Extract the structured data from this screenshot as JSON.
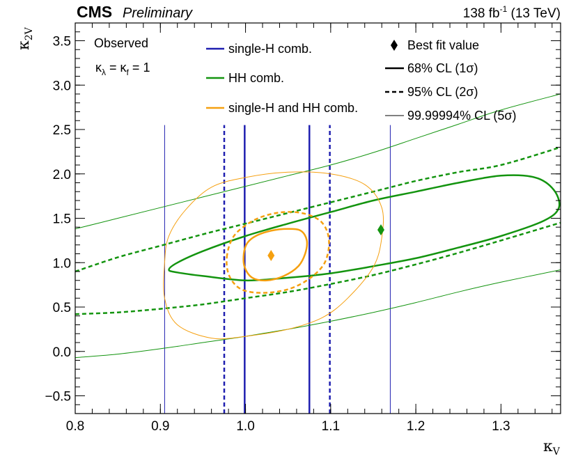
{
  "chart_data": {
    "type": "contour",
    "experiment": "CMS",
    "status": "Preliminary",
    "luminosity": {
      "value": "138 fb",
      "exponent": "-1",
      "energy": "(13 TeV)"
    },
    "xlabel": {
      "symbol": "κ",
      "subscript": "V"
    },
    "ylabel": {
      "symbol": "κ",
      "subscript": "2V"
    },
    "xlim": [
      0.8,
      1.37
    ],
    "ylim": [
      -0.7,
      3.7
    ],
    "x_ticks": [
      {
        "value": 0.8,
        "label": "0.8"
      },
      {
        "value": 0.9,
        "label": "0.9"
      },
      {
        "value": 1.0,
        "label": "1.0"
      },
      {
        "value": 1.1,
        "label": "1.1"
      },
      {
        "value": 1.2,
        "label": "1.2"
      },
      {
        "value": 1.3,
        "label": "1.3"
      }
    ],
    "y_ticks": [
      {
        "value": -0.5,
        "label": "−0.5"
      },
      {
        "value": 0.0,
        "label": "0.0"
      },
      {
        "value": 0.5,
        "label": "0.5"
      },
      {
        "value": 1.0,
        "label": "1.0"
      },
      {
        "value": 1.5,
        "label": "1.5"
      },
      {
        "value": 2.0,
        "label": "2.0"
      },
      {
        "value": 2.5,
        "label": "2.5"
      },
      {
        "value": 3.0,
        "label": "3.0"
      },
      {
        "value": 3.5,
        "label": "3.5"
      }
    ],
    "annotations": {
      "observed": "Observed",
      "condition": {
        "k": "κ",
        "lambda_sub": "λ",
        "f_sub": "f",
        "eq": "=",
        "value": "1"
      }
    },
    "legend": {
      "single_h": "single-H comb.",
      "hh": "HH comb.",
      "combined": "single-H and HH comb.",
      "best_fit": "Best fit value",
      "cl68": "68% CL (1σ)",
      "cl95": "95% CL (2σ)",
      "cl5s": "99.99994% CL (5σ)"
    },
    "colors": {
      "single_h": "#1f1fb0",
      "hh": "#13940f",
      "combined": "#f5a010"
    },
    "series": [
      {
        "name": "single-H comb. 68% CL",
        "kind": "vline",
        "color": "#1f1fb0",
        "style": "solid",
        "width": 2.5,
        "x": [
          0.999,
          1.075
        ],
        "y_range": [
          -0.7,
          2.55
        ]
      },
      {
        "name": "single-H comb. 95% CL",
        "kind": "vline",
        "color": "#1f1fb0",
        "style": "dashed",
        "width": 2.5,
        "x": [
          0.975,
          1.099
        ],
        "y_range": [
          -0.7,
          2.55
        ]
      },
      {
        "name": "single-H comb. 5σ CL",
        "kind": "vline",
        "color": "#1f1fb0",
        "style": "solid",
        "width": 1,
        "x": [
          0.905,
          1.17
        ],
        "y_range": [
          -0.7,
          2.55
        ]
      },
      {
        "name": "HH comb. 68% CL",
        "kind": "contour",
        "color": "#13940f",
        "style": "solid",
        "width": 2.5,
        "closed": true,
        "points": [
          [
            0.91,
            0.92
          ],
          [
            0.92,
            0.89
          ],
          [
            0.95,
            0.85
          ],
          [
            1.0,
            0.8
          ],
          [
            1.05,
            0.83
          ],
          [
            1.1,
            0.88
          ],
          [
            1.15,
            0.96
          ],
          [
            1.2,
            1.05
          ],
          [
            1.25,
            1.17
          ],
          [
            1.3,
            1.3
          ],
          [
            1.35,
            1.47
          ],
          [
            1.368,
            1.62
          ],
          [
            1.362,
            1.82
          ],
          [
            1.34,
            1.96
          ],
          [
            1.3,
            1.98
          ],
          [
            1.25,
            1.9
          ],
          [
            1.2,
            1.8
          ],
          [
            1.15,
            1.7
          ],
          [
            1.1,
            1.57
          ],
          [
            1.05,
            1.44
          ],
          [
            1.0,
            1.3
          ],
          [
            0.95,
            1.13
          ],
          [
            0.92,
            1.0
          ]
        ]
      },
      {
        "name": "HH comb. 95% CL (upper)",
        "kind": "curve",
        "color": "#13940f",
        "style": "dashed",
        "width": 2.5,
        "points": [
          [
            0.8,
            0.9
          ],
          [
            0.85,
            1.06
          ],
          [
            0.9,
            1.19
          ],
          [
            0.95,
            1.32
          ],
          [
            1.0,
            1.44
          ],
          [
            1.05,
            1.56
          ],
          [
            1.1,
            1.68
          ],
          [
            1.15,
            1.8
          ],
          [
            1.2,
            1.92
          ],
          [
            1.25,
            2.02
          ],
          [
            1.3,
            2.1
          ],
          [
            1.37,
            2.3
          ]
        ]
      },
      {
        "name": "HH comb. 95% CL (lower)",
        "kind": "curve",
        "color": "#13940f",
        "style": "dashed",
        "width": 2.5,
        "points": [
          [
            0.8,
            0.42
          ],
          [
            0.85,
            0.44
          ],
          [
            0.9,
            0.48
          ],
          [
            0.95,
            0.53
          ],
          [
            1.0,
            0.6
          ],
          [
            1.05,
            0.67
          ],
          [
            1.1,
            0.76
          ],
          [
            1.15,
            0.86
          ],
          [
            1.2,
            0.98
          ],
          [
            1.25,
            1.11
          ],
          [
            1.3,
            1.25
          ],
          [
            1.37,
            1.45
          ]
        ]
      },
      {
        "name": "HH comb. 5σ CL (upper)",
        "kind": "curve",
        "color": "#13940f",
        "style": "solid",
        "width": 1,
        "points": [
          [
            0.8,
            1.38
          ],
          [
            0.85,
            1.5
          ],
          [
            0.9,
            1.62
          ],
          [
            0.95,
            1.74
          ],
          [
            1.0,
            1.86
          ],
          [
            1.05,
            1.98
          ],
          [
            1.1,
            2.1
          ],
          [
            1.15,
            2.24
          ],
          [
            1.2,
            2.4
          ],
          [
            1.25,
            2.56
          ],
          [
            1.3,
            2.72
          ],
          [
            1.37,
            2.9
          ]
        ]
      },
      {
        "name": "HH comb. 5σ CL (lower)",
        "kind": "curve",
        "color": "#13940f",
        "style": "solid",
        "width": 1,
        "points": [
          [
            0.8,
            -0.07
          ],
          [
            0.85,
            -0.03
          ],
          [
            0.9,
            0.03
          ],
          [
            0.95,
            0.1
          ],
          [
            1.0,
            0.17
          ],
          [
            1.05,
            0.25
          ],
          [
            1.1,
            0.34
          ],
          [
            1.15,
            0.44
          ],
          [
            1.2,
            0.55
          ],
          [
            1.25,
            0.67
          ],
          [
            1.3,
            0.78
          ],
          [
            1.37,
            0.92
          ]
        ]
      },
      {
        "name": "single-H and HH comb. 68% CL",
        "kind": "contour",
        "color": "#f5a010",
        "style": "solid",
        "width": 2.5,
        "closed": true,
        "points": [
          [
            0.998,
            1.1
          ],
          [
            1.002,
            1.22
          ],
          [
            1.012,
            1.3
          ],
          [
            1.03,
            1.36
          ],
          [
            1.05,
            1.38
          ],
          [
            1.065,
            1.36
          ],
          [
            1.072,
            1.25
          ],
          [
            1.07,
            1.1
          ],
          [
            1.062,
            0.96
          ],
          [
            1.045,
            0.85
          ],
          [
            1.025,
            0.8
          ],
          [
            1.008,
            0.83
          ],
          [
            0.999,
            0.95
          ]
        ]
      },
      {
        "name": "single-H and HH comb. 95% CL",
        "kind": "contour",
        "color": "#f5a010",
        "style": "dashed",
        "width": 2.5,
        "closed": true,
        "points": [
          [
            0.978,
            1.06
          ],
          [
            0.985,
            1.28
          ],
          [
            1.0,
            1.42
          ],
          [
            1.02,
            1.52
          ],
          [
            1.045,
            1.57
          ],
          [
            1.07,
            1.55
          ],
          [
            1.09,
            1.45
          ],
          [
            1.098,
            1.25
          ],
          [
            1.093,
            1.0
          ],
          [
            1.075,
            0.82
          ],
          [
            1.05,
            0.7
          ],
          [
            1.02,
            0.66
          ],
          [
            0.995,
            0.7
          ],
          [
            0.981,
            0.85
          ]
        ]
      },
      {
        "name": "single-H and HH comb. 5σ CL",
        "kind": "contour",
        "color": "#f5a010",
        "style": "solid",
        "width": 1,
        "closed": true,
        "points": [
          [
            0.905,
            1.0
          ],
          [
            0.91,
            1.3
          ],
          [
            0.93,
            1.6
          ],
          [
            0.96,
            1.85
          ],
          [
            1.0,
            1.96
          ],
          [
            1.05,
            2.02
          ],
          [
            1.1,
            2.0
          ],
          [
            1.14,
            1.88
          ],
          [
            1.16,
            1.62
          ],
          [
            1.16,
            1.28
          ],
          [
            1.15,
            0.95
          ],
          [
            1.12,
            0.6
          ],
          [
            1.09,
            0.38
          ],
          [
            1.05,
            0.25
          ],
          [
            1.0,
            0.17
          ],
          [
            0.96,
            0.15
          ],
          [
            0.92,
            0.3
          ],
          [
            0.905,
            0.6
          ]
        ]
      }
    ],
    "best_fit": [
      {
        "name": "HH comb.",
        "x": 1.159,
        "y": 1.37,
        "color": "#13940f"
      },
      {
        "name": "single-H and HH comb.",
        "x": 1.03,
        "y": 1.08,
        "color": "#f5a010"
      }
    ]
  }
}
